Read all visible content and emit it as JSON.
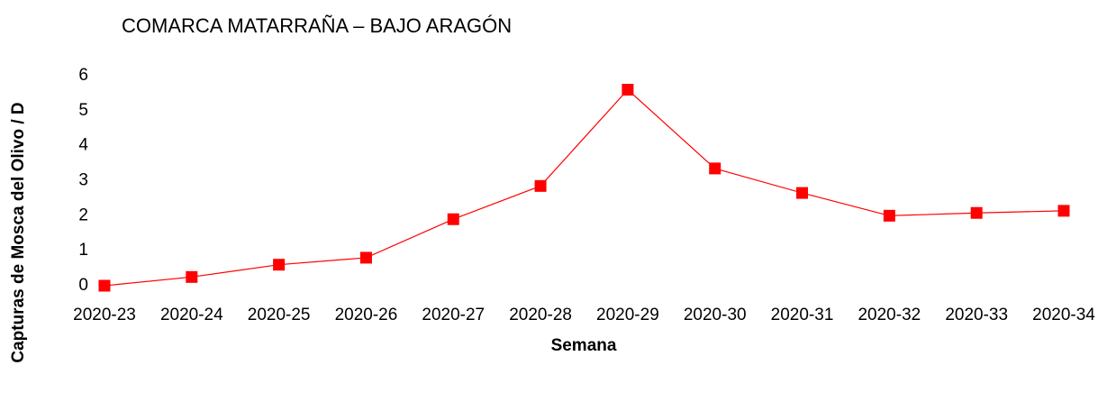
{
  "chart_data": {
    "type": "line",
    "title": "COMARCA  MATARRAÑA – BAJO ARAGÓN",
    "xlabel": "Semana",
    "ylabel": "Capturas de Mosca del Olivo / D",
    "categories": [
      "2020-23",
      "2020-24",
      "2020-25",
      "2020-26",
      "2020-27",
      "2020-28",
      "2020-29",
      "2020-30",
      "2020-31",
      "2020-32",
      "2020-33",
      "2020-34"
    ],
    "series": [
      {
        "name": "Capturas",
        "color": "#ff0000",
        "values": [
          0,
          0.25,
          0.6,
          0.8,
          1.9,
          2.85,
          5.6,
          3.35,
          2.65,
          2.0,
          2.08,
          2.14
        ]
      }
    ],
    "ylim": [
      0,
      6
    ],
    "yticks": [
      0,
      1,
      2,
      3,
      4,
      5,
      6
    ],
    "grid": false,
    "legend": false
  }
}
